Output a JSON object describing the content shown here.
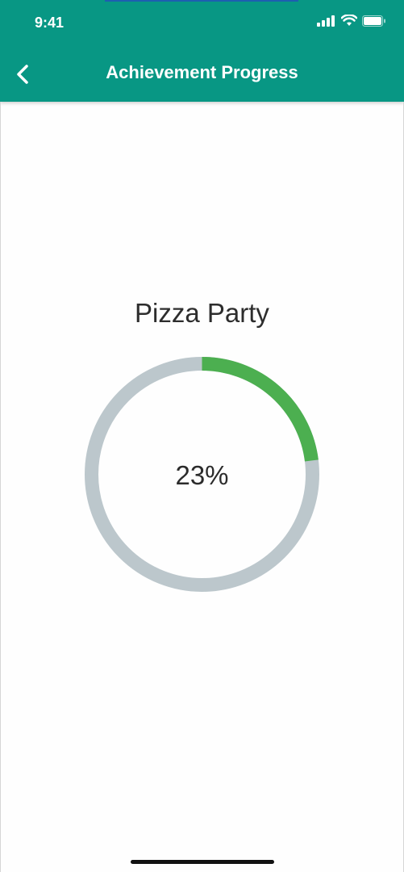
{
  "status_bar": {
    "time": "9:41",
    "icons": [
      "signal-icon",
      "wifi-icon",
      "battery-icon"
    ]
  },
  "header": {
    "title": "Achievement Progress",
    "back_icon": "chevron-left-icon",
    "background_color": "#089784"
  },
  "achievement": {
    "name": "Pizza Party",
    "percent_label": "23%",
    "progress_fraction": 0.23,
    "progress_color": "#4caf50",
    "track_color": "#bcc7cc"
  }
}
